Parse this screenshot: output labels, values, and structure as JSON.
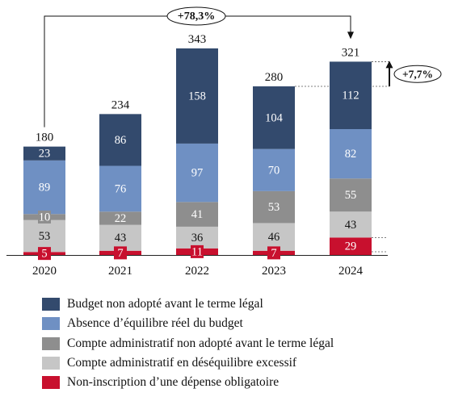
{
  "chart_data": {
    "type": "bar",
    "stacked": true,
    "categories": [
      "2020",
      "2021",
      "2022",
      "2023",
      "2024"
    ],
    "series": [
      {
        "name": "Non-inscription d’une dépense obligatoire",
        "color": "#c8102e",
        "values": [
          5,
          7,
          11,
          7,
          29
        ]
      },
      {
        "name": "Compte administratif en déséquilibre excessif",
        "color": "#c6c6c6",
        "values": [
          53,
          43,
          36,
          46,
          43
        ]
      },
      {
        "name": "Compte administratif non adopté avant le terme légal",
        "color": "#8e8e8e",
        "values": [
          10,
          22,
          41,
          53,
          55
        ]
      },
      {
        "name": "Absence d’équilibre réel du budget",
        "color": "#6f90c3",
        "values": [
          89,
          76,
          97,
          70,
          82
        ]
      },
      {
        "name": "Budget non adopté avant le terme légal",
        "color": "#334a6d",
        "values": [
          23,
          86,
          158,
          104,
          112
        ]
      }
    ],
    "totals": [
      "180",
      "234",
      "343",
      "280",
      "321"
    ],
    "annotations": {
      "span_label": "+78,3%",
      "last_label": "+7,7%"
    },
    "ylim": [
      0,
      343
    ],
    "grid": false,
    "legend_position": "bottom-left"
  },
  "legend_items": [
    {
      "label": "Budget non adopté avant le terme légal",
      "color": "#334a6d"
    },
    {
      "label": "Absence d’équilibre réel du budget",
      "color": "#6f90c3"
    },
    {
      "label": "Compte administratif non adopté avant le terme légal",
      "color": "#8e8e8e"
    },
    {
      "label": "Compte administratif en déséquilibre excessif",
      "color": "#c6c6c6"
    },
    {
      "label": "Non-inscription d’une dépense obligatoire",
      "color": "#c8102e"
    }
  ]
}
